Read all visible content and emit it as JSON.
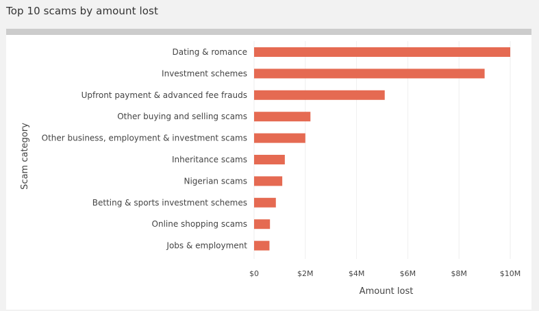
{
  "page": {
    "title": "Top 10 scams by amount lost"
  },
  "colors": {
    "bar": "#e56a52",
    "grid": "#eeeeee",
    "text": "#444444"
  },
  "chart_data": {
    "type": "bar",
    "orientation": "horizontal",
    "title": "",
    "xlabel": "Amount lost",
    "ylabel": "Scam category",
    "xlim": [
      0,
      10
    ],
    "x_tick_values": [
      0,
      2,
      4,
      6,
      8,
      10
    ],
    "x_tick_labels": [
      "$0",
      "$2M",
      "$4M",
      "$6M",
      "$8M",
      "$10M"
    ],
    "categories": [
      "Dating & romance",
      "Investment schemes",
      "Upfront payment & advanced fee frauds",
      "Other buying and selling scams",
      "Other business, employment & investment scams",
      "Inheritance scams",
      "Nigerian scams",
      "Betting & sports investment schemes",
      "Online shopping scams",
      "Jobs & employment"
    ],
    "values": [
      10.0,
      9.0,
      5.1,
      2.2,
      2.0,
      1.2,
      1.1,
      0.85,
      0.62,
      0.6
    ],
    "grid": true
  }
}
